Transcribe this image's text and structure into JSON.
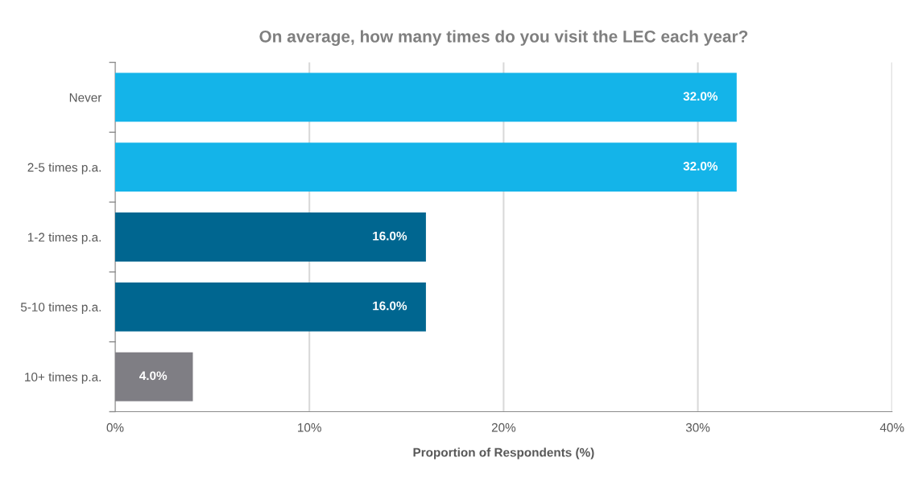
{
  "chart_data": {
    "type": "bar",
    "orientation": "horizontal",
    "title": "On average, how many times do you visit the LEC each year?",
    "xlabel": "Proportion of Respondents (%)",
    "categories": [
      "Never",
      "2-5 times p.a.",
      "1-2 times p.a.",
      "5-10 times p.a.",
      "10+ times p.a."
    ],
    "values": [
      32.0,
      32.0,
      16.0,
      16.0,
      4.0
    ],
    "colors": [
      "#14b4e9",
      "#14b4e9",
      "#006690",
      "#006690",
      "#7f7e84"
    ],
    "value_labels": [
      "32.0%",
      "32.0%",
      "16.0%",
      "16.0%",
      "4.0%"
    ],
    "xlim": [
      0,
      40
    ],
    "xticks": [
      {
        "value": 0,
        "label": "0%"
      },
      {
        "value": 10,
        "label": "10%"
      },
      {
        "value": 20,
        "label": "20%"
      },
      {
        "value": 30,
        "label": "30%"
      },
      {
        "value": 40,
        "label": "40%"
      }
    ],
    "grid": "x",
    "legend": false
  }
}
